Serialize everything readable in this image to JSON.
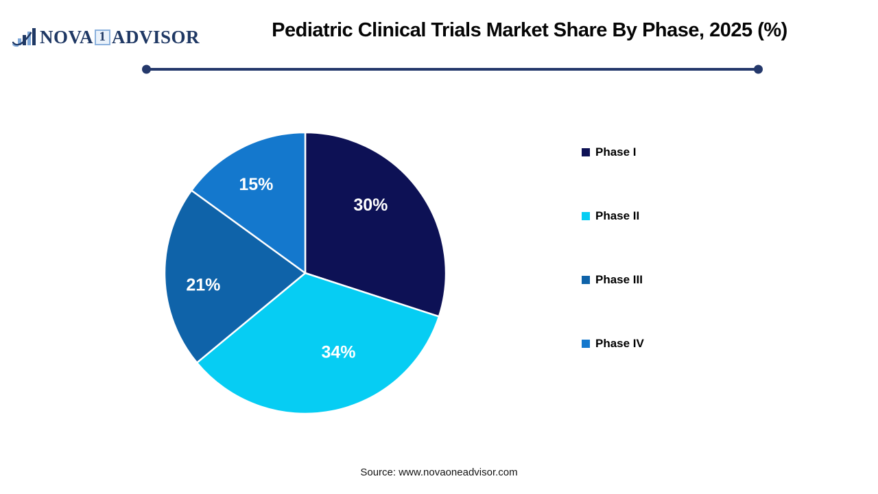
{
  "logo": {
    "brand_nova": "NOVA",
    "brand_one": "1",
    "brand_advisor": "ADVISOR"
  },
  "header": {
    "title": "Pediatric Clinical Trials Market Share By Phase, 2025 (%)"
  },
  "footer": {
    "source": "Source: www.novaoneadvisor.com"
  },
  "colors": {
    "accent_navy": "#1f3864",
    "divider": "#24386b",
    "title_text": "#050505",
    "pie_label_text": "#ffffff",
    "phase_1": "#0d1155",
    "phase_2": "#06cdf3",
    "phase_3": "#0f63a9",
    "phase_4": "#1478cd"
  },
  "chart_data": {
    "type": "pie",
    "title": "Pediatric Clinical Trials Market Share By Phase, 2025 (%)",
    "unit": "%",
    "start_angle": "top",
    "direction": "clockwise",
    "legend_position": "right",
    "data_labels": "inside",
    "slices": [
      {
        "label": "Phase I",
        "value": 30,
        "data_label": "30%",
        "color": "#0d1155"
      },
      {
        "label": "Phase II",
        "value": 34,
        "data_label": "34%",
        "color": "#06cdf3"
      },
      {
        "label": "Phase III",
        "value": 21,
        "data_label": "21%",
        "color": "#0f63a9"
      },
      {
        "label": "Phase IV",
        "value": 15,
        "data_label": "15%",
        "color": "#1478cd"
      }
    ]
  }
}
